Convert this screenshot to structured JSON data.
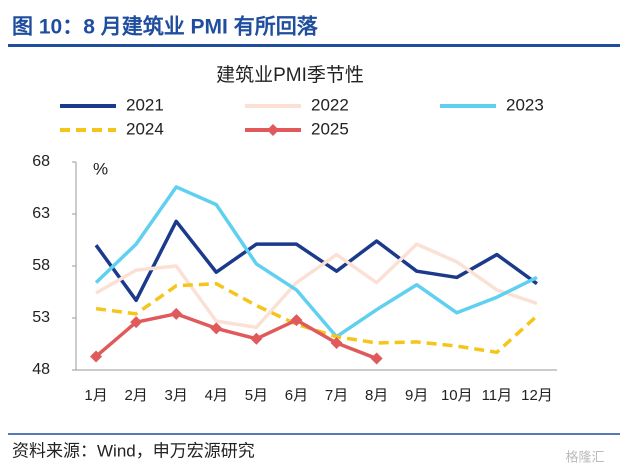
{
  "header": {
    "title": "图 10：8 月建筑业 PMI 有所回落"
  },
  "chart_data": {
    "type": "line",
    "title": "建筑业PMI季节性",
    "y_unit": "%",
    "categories": [
      "1月",
      "2月",
      "3月",
      "4月",
      "5月",
      "6月",
      "7月",
      "8月",
      "9月",
      "10月",
      "11月",
      "12月"
    ],
    "series": [
      {
        "name": "2021",
        "color": "#1b3a8c",
        "dashed": false,
        "values": [
          60.0,
          54.7,
          62.3,
          57.4,
          60.1,
          60.1,
          57.5,
          60.4,
          57.5,
          56.9,
          59.1,
          56.3
        ]
      },
      {
        "name": "2022",
        "color": "#fbe1d5",
        "dashed": false,
        "values": [
          55.4,
          57.6,
          58.0,
          52.7,
          52.1,
          56.4,
          59.1,
          56.4,
          60.1,
          58.4,
          55.7,
          54.4
        ]
      },
      {
        "name": "2023",
        "color": "#5fd0f0",
        "dashed": false,
        "values": [
          56.4,
          60.1,
          65.6,
          63.9,
          58.2,
          55.7,
          51.2,
          53.8,
          56.2,
          53.5,
          55.0,
          56.9
        ]
      },
      {
        "name": "2024",
        "color": "#f6c51b",
        "dashed": true,
        "values": [
          53.9,
          53.4,
          56.1,
          56.3,
          54.2,
          52.4,
          51.2,
          50.6,
          50.7,
          50.3,
          49.7,
          53.2
        ]
      },
      {
        "name": "2025",
        "color": "#e05a5c",
        "dashed": false,
        "marker": "diamond",
        "values": [
          49.3,
          52.6,
          53.4,
          52.0,
          51.0,
          52.8,
          50.6,
          49.1,
          null,
          null,
          null,
          null
        ]
      }
    ],
    "ylim": [
      48,
      68
    ],
    "yticks": [
      48,
      53,
      58,
      63,
      68
    ],
    "grid": false
  },
  "footer": {
    "source": "资料来源：Wind，申万宏源研究",
    "watermark": "格隆汇"
  }
}
